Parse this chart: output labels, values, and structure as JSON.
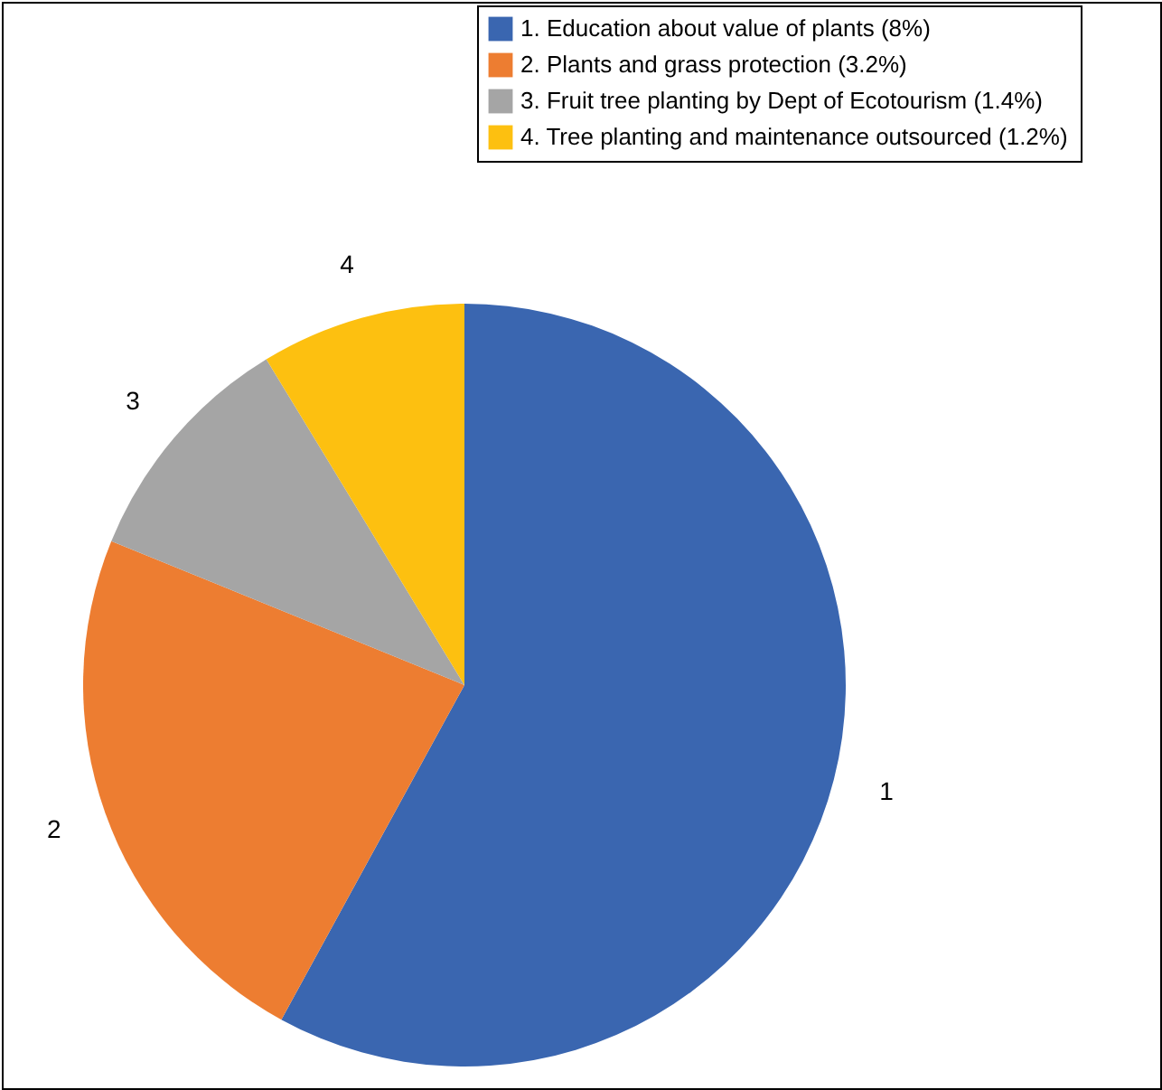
{
  "chart_data": {
    "type": "pie",
    "categories": [
      "1. Education about value of plants (8%)",
      "2. Plants and grass protection (3.2%)",
      "3. Fruit tree planting by Dept of Ecotourism (1.4%)",
      "4. Tree planting and maintenance outsourced (1.2%)"
    ],
    "values": [
      8,
      3.2,
      1.4,
      1.2
    ],
    "colors": [
      "#3a66b0",
      "#ed7d31",
      "#a5a5a5",
      "#fdc010"
    ],
    "annotations": [
      "1",
      "2",
      "3",
      "4"
    ],
    "legend": "top right"
  }
}
